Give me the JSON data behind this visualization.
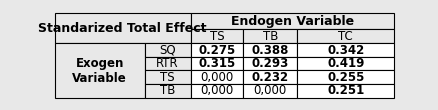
{
  "title": "Standarized Total Effect",
  "endogen_label": "Endogen Variable",
  "endogen_cols": [
    "TS",
    "TB",
    "TC"
  ],
  "exogen_label": "Exogen\nVariable",
  "exogen_rows": [
    "SQ",
    "RTR",
    "TS",
    "TB"
  ],
  "values": [
    [
      "0.275",
      "0.388",
      "0.342"
    ],
    [
      "0.315",
      "0.293",
      "0.419"
    ],
    [
      "0,000",
      "0.232",
      "0.255"
    ],
    [
      "0,000",
      "0,000",
      "0.251"
    ]
  ],
  "bold_values": [
    [
      true,
      true,
      true
    ],
    [
      true,
      true,
      true
    ],
    [
      false,
      true,
      true
    ],
    [
      false,
      false,
      true
    ]
  ],
  "bg_color": "#e8e8e8",
  "header_bg": "#e8e8e8",
  "cell_bg": "#ffffff",
  "font_size": 8.5,
  "header_font_size": 9,
  "col_bounds": [
    0.0,
    0.265,
    0.4,
    0.555,
    0.715,
    1.0
  ],
  "row_bounds": [
    1.0,
    0.815,
    0.645,
    0.485,
    0.325,
    0.165,
    0.0
  ]
}
